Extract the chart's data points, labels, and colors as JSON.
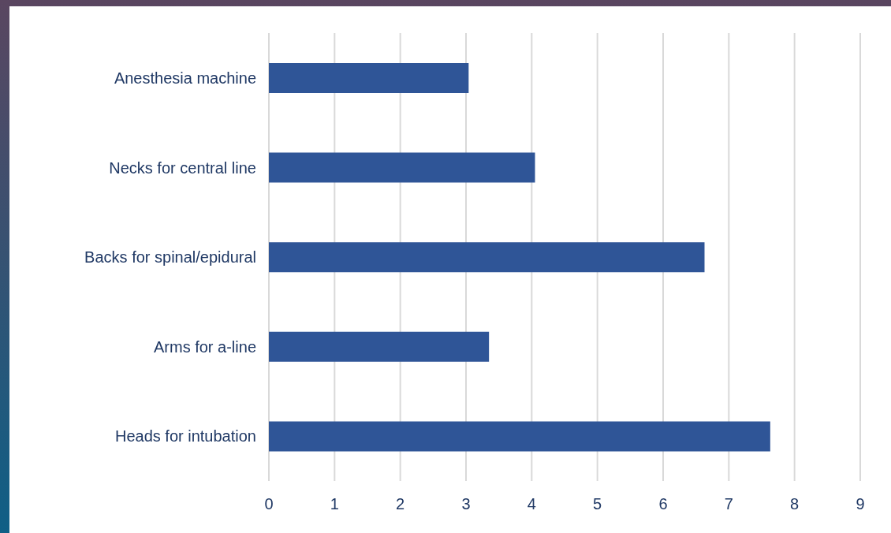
{
  "chart_data": {
    "type": "bar",
    "orientation": "horizontal",
    "categories": [
      "Anesthesia machine",
      "Necks for central line",
      "Backs for spinal/epidural",
      "Arms for a-line",
      "Heads for intubation"
    ],
    "values": [
      3.04,
      4.05,
      6.63,
      3.35,
      7.63
    ],
    "color": "#2f5597",
    "xlim": [
      0,
      9
    ],
    "xticks": [
      0,
      1,
      2,
      3,
      4,
      5,
      6,
      7,
      8,
      9
    ],
    "grid": "x"
  }
}
